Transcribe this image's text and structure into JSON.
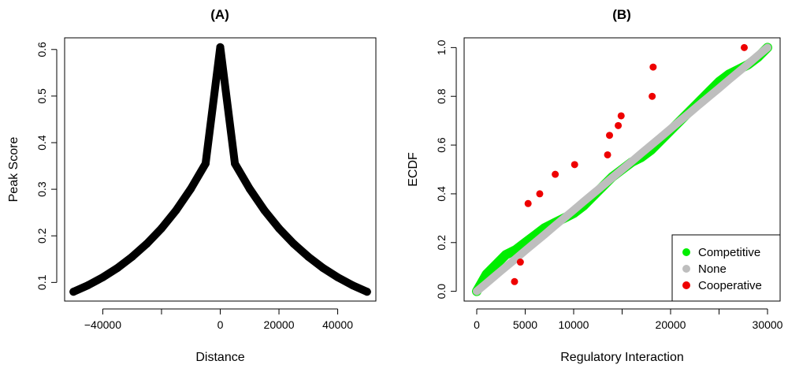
{
  "chart_data": [
    {
      "type": "line",
      "title": "(A)",
      "xlabel": "Distance",
      "ylabel": "Peak Score",
      "xlim": [
        -50000,
        50000
      ],
      "ylim": [
        0.08,
        0.605
      ],
      "xticks": [
        -40000,
        -20000,
        0,
        20000,
        40000
      ],
      "xtick_labels": [
        "-40000",
        "",
        "0",
        "20000",
        "40000"
      ],
      "yticks": [
        0.1,
        0.2,
        0.3,
        0.4,
        0.5,
        0.6
      ],
      "ytick_labels": [
        "0.1",
        "0.2",
        "0.3",
        "0.4",
        "0.5",
        "0.6"
      ],
      "series": [
        {
          "color": "#000000",
          "x": [
            -50000,
            -45000,
            -40000,
            -35000,
            -30000,
            -25000,
            -20000,
            -15000,
            -10000,
            -5000,
            0,
            5000,
            10000,
            15000,
            20000,
            25000,
            30000,
            35000,
            40000,
            45000,
            50000
          ],
          "y": [
            0.08,
            0.094,
            0.111,
            0.131,
            0.155,
            0.183,
            0.216,
            0.255,
            0.301,
            0.355,
            0.605,
            0.355,
            0.301,
            0.255,
            0.216,
            0.183,
            0.155,
            0.131,
            0.111,
            0.094,
            0.08
          ]
        }
      ],
      "grid": false
    },
    {
      "type": "scatter",
      "title": "(B)",
      "xlabel": "Regulatory Interaction",
      "ylabel": "ECDF",
      "xlim": [
        0,
        30000
      ],
      "ylim": [
        0,
        1
      ],
      "xticks": [
        0,
        5000,
        10000,
        15000,
        20000,
        25000,
        30000
      ],
      "xtick_labels": [
        "0",
        "5000",
        "10000",
        "",
        "20000",
        "",
        "30000"
      ],
      "yticks": [
        0,
        0.2,
        0.4,
        0.6,
        0.8,
        1.0
      ],
      "ytick_labels": [
        "0.0",
        "0.2",
        "0.4",
        "0.6",
        "0.8",
        "1.0"
      ],
      "legend_position": "bottom-right",
      "grid": false,
      "series": [
        {
          "name": "Competitive",
          "color": "#00ee00",
          "x": [
            0,
            1000,
            2000,
            3000,
            4000,
            5000,
            6000,
            7000,
            8000,
            9000,
            10000,
            11000,
            12000,
            13000,
            14000,
            15000,
            16000,
            17000,
            18000,
            19000,
            20000,
            21000,
            22000,
            23000,
            24000,
            25000,
            26000,
            27000,
            28000,
            29000,
            30000
          ],
          "y": [
            0.0,
            0.07,
            0.11,
            0.15,
            0.17,
            0.2,
            0.23,
            0.26,
            0.28,
            0.3,
            0.32,
            0.35,
            0.39,
            0.43,
            0.47,
            0.5,
            0.53,
            0.55,
            0.58,
            0.62,
            0.66,
            0.7,
            0.74,
            0.78,
            0.82,
            0.86,
            0.89,
            0.91,
            0.93,
            0.96,
            1.0
          ]
        },
        {
          "name": "None",
          "color": "#bebebe",
          "x": [
            0,
            1000,
            2000,
            3000,
            4000,
            5000,
            6000,
            7000,
            8000,
            9000,
            10000,
            11000,
            12000,
            13000,
            14000,
            15000,
            16000,
            17000,
            18000,
            19000,
            20000,
            21000,
            22000,
            23000,
            24000,
            25000,
            26000,
            27000,
            28000,
            29000,
            30000
          ],
          "y": [
            0.0,
            0.033,
            0.067,
            0.1,
            0.133,
            0.167,
            0.2,
            0.233,
            0.267,
            0.3,
            0.333,
            0.367,
            0.4,
            0.433,
            0.467,
            0.5,
            0.533,
            0.567,
            0.6,
            0.633,
            0.667,
            0.7,
            0.733,
            0.767,
            0.8,
            0.833,
            0.867,
            0.9,
            0.933,
            0.967,
            1.0
          ]
        },
        {
          "name": "Cooperative",
          "color": "#ee0000",
          "x": [
            3900,
            4500,
            5300,
            6500,
            8100,
            10100,
            13500,
            13700,
            14600,
            14900,
            18100,
            18200,
            27600
          ],
          "y": [
            0.04,
            0.12,
            0.36,
            0.4,
            0.48,
            0.52,
            0.56,
            0.64,
            0.68,
            0.72,
            0.8,
            0.92,
            1.0
          ]
        }
      ]
    }
  ]
}
